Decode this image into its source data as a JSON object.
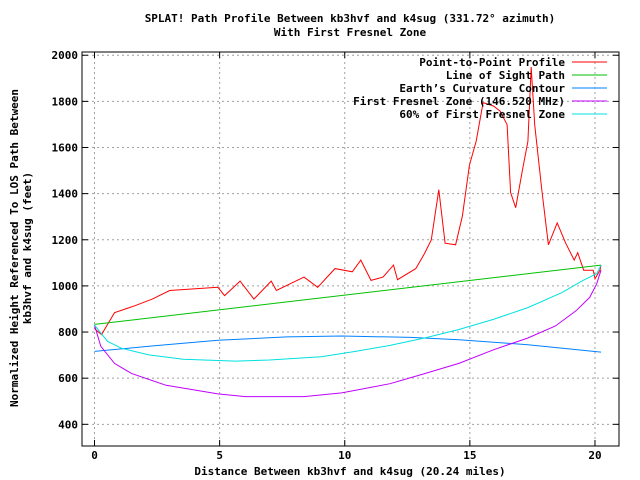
{
  "chart_data": {
    "type": "line",
    "title": [
      "SPLAT! Path Profile Between kb3hvf and k4sug (331.72° azimuth)",
      "With First Fresnel Zone"
    ],
    "xlabel": "Distance Between kb3hvf and k4sug (20.24 miles)",
    "ylabel": [
      "Normalized Height Referenced To LOS Path Between",
      "kb3hvf and k4sug (feet)"
    ],
    "xlim": [
      -0.5,
      20.96
    ],
    "ylim": [
      306,
      2014
    ],
    "xticks": [
      0,
      5,
      10,
      15,
      20
    ],
    "yticks": [
      400,
      600,
      800,
      1000,
      1200,
      1400,
      1600,
      1800,
      2000
    ],
    "grid": true,
    "legend_position": "top-right",
    "series": [
      {
        "name": "Point-to-Point Profile",
        "color": "#ff0000",
        "x": [
          0,
          0.28,
          0.8,
          1.62,
          2.31,
          3.0,
          3.96,
          4.93,
          5.2,
          5.82,
          6.37,
          7.06,
          7.27,
          8.37,
          8.92,
          9.61,
          10.3,
          10.64,
          11.05,
          11.53,
          11.95,
          12.11,
          12.84,
          13.19,
          13.46,
          13.76,
          14.01,
          14.43,
          14.7,
          14.98,
          15.25,
          15.53,
          15.94,
          16.21,
          16.49,
          16.63,
          16.83,
          17.11,
          17.32,
          17.45,
          17.59,
          17.87,
          18.14,
          18.49,
          18.83,
          19.17,
          19.31,
          19.55,
          19.93,
          20.0,
          20.2,
          20.24
        ],
        "y": [
          815,
          789,
          884,
          914,
          943,
          980,
          987,
          994,
          958,
          1021,
          943,
          1021,
          980,
          1038,
          994,
          1075,
          1061,
          1112,
          1024,
          1038,
          1090,
          1027,
          1075,
          1141,
          1200,
          1417,
          1185,
          1178,
          1303,
          1523,
          1626,
          1794,
          1780,
          1758,
          1699,
          1405,
          1339,
          1508,
          1626,
          1949,
          1699,
          1420,
          1178,
          1273,
          1185,
          1112,
          1144,
          1068,
          1068,
          1031,
          1068,
          1090
        ]
      },
      {
        "name": "Line of Sight Path",
        "color": "#00c000",
        "x": [
          0,
          20.24
        ],
        "y": [
          833,
          1090
        ]
      },
      {
        "name": "Earth’s Curvature Contour",
        "color": "#0080ff",
        "x": [
          0,
          2.17,
          4.93,
          7.68,
          9.88,
          12.64,
          14.56,
          17.32,
          20.24
        ],
        "y": [
          716,
          738,
          764,
          779,
          783,
          777,
          767,
          745,
          713
        ]
      },
      {
        "name": "First Fresnel Zone (146.520 MHz)",
        "color": "#c000ff",
        "x": [
          0,
          0.25,
          0.8,
          1.49,
          2.86,
          4.93,
          6.03,
          8.37,
          9.88,
          11.81,
          13.19,
          14.56,
          15.94,
          17.32,
          18.42,
          19.24,
          19.79,
          20.07,
          20.24
        ],
        "y": [
          830,
          738,
          664,
          620,
          569,
          532,
          520,
          520,
          536,
          576,
          620,
          664,
          723,
          774,
          826,
          892,
          950,
          1009,
          1068
        ]
      },
      {
        "name": "60% of First Fresnel Zone",
        "color": "#00e0e0",
        "x": [
          0,
          0.52,
          1.07,
          2.17,
          3.55,
          5.62,
          6.99,
          9.06,
          10.43,
          11.81,
          13.19,
          14.56,
          15.94,
          17.32,
          18.69,
          19.52,
          20.07,
          20.24
        ],
        "y": [
          830,
          760,
          730,
          701,
          682,
          674,
          679,
          693,
          716,
          742,
          774,
          811,
          855,
          906,
          972,
          1024,
          1053,
          1090
        ]
      }
    ]
  }
}
